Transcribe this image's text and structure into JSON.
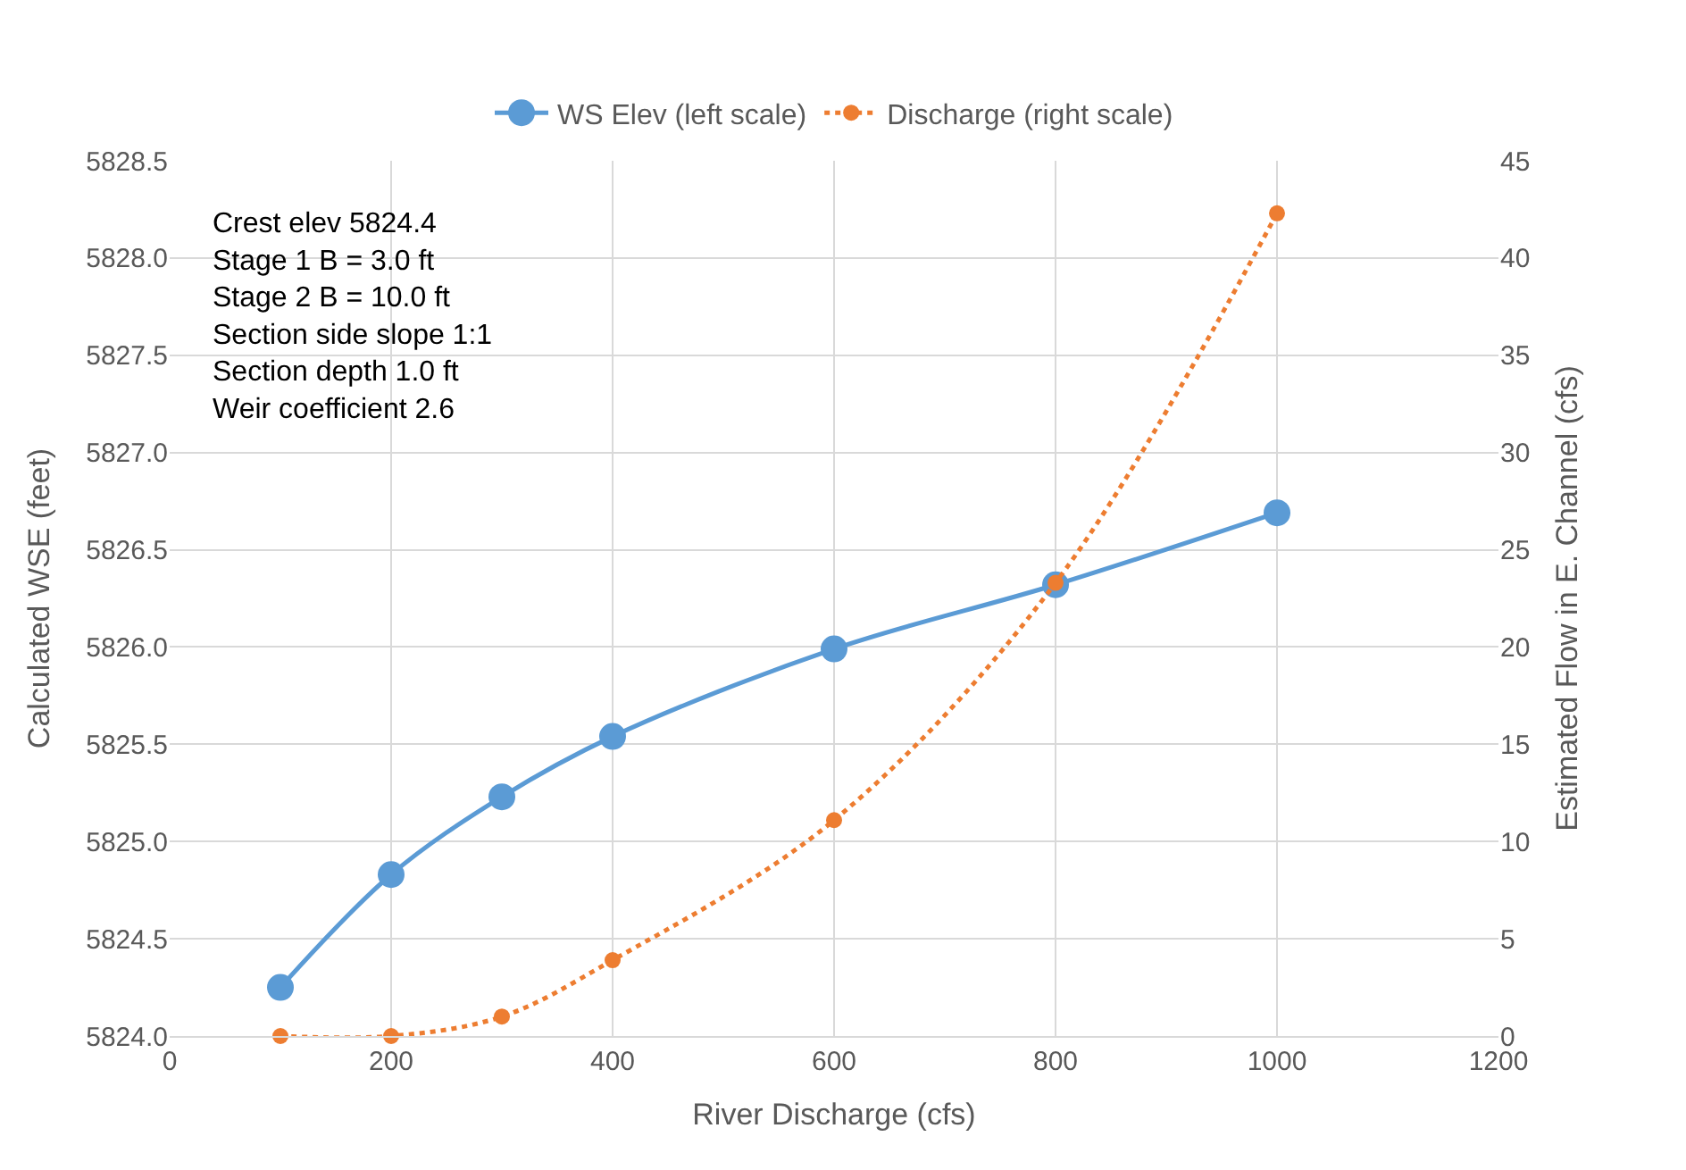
{
  "chart_data": {
    "type": "line",
    "xlabel": "River Discharge (cfs)",
    "ylabel": "Calculated WSE (feet)",
    "y2label": "Estimated Flow in E. Channel (cfs)",
    "x": [
      100,
      200,
      300,
      400,
      600,
      800,
      1000
    ],
    "series": [
      {
        "name": "WS Elev (left scale)",
        "color": "#5b9bd5",
        "values": [
          5824.25,
          5824.83,
          5825.23,
          5825.54,
          5825.99,
          5826.32,
          5826.69
        ],
        "line_style": "solid"
      },
      {
        "name": "Discharge (right scale)",
        "color": "#ed7d31",
        "values": [
          0,
          0,
          1.0,
          3.9,
          11.1,
          23.3,
          42.3
        ],
        "axis": "y2",
        "line_style": "dotted"
      }
    ],
    "xlim": [
      0,
      1200
    ],
    "xticks": [
      0,
      200,
      400,
      600,
      800,
      1000,
      1200
    ],
    "ylim": [
      5824.0,
      5828.5
    ],
    "yticks": [
      {
        "value": 5824.0,
        "label": "5824.0"
      },
      {
        "value": 5824.5,
        "label": "5824.5"
      },
      {
        "value": 5825.0,
        "label": "5825.0"
      },
      {
        "value": 5825.5,
        "label": "5825.5"
      },
      {
        "value": 5826.0,
        "label": "5826.0"
      },
      {
        "value": 5826.5,
        "label": "5826.5"
      },
      {
        "value": 5827.0,
        "label": "5827.0"
      },
      {
        "value": 5827.5,
        "label": "5827.5"
      },
      {
        "value": 5828.0,
        "label": "5828.0"
      },
      {
        "value": 5828.5,
        "label": "5828.5"
      }
    ],
    "y2lim": [
      0,
      45
    ],
    "y2ticks": [
      0,
      5,
      10,
      15,
      20,
      25,
      30,
      35,
      40,
      45
    ],
    "annotations": [
      "Crest elev 5824.4",
      "Stage 1 B = 3.0 ft",
      "Stage 2 B = 10.0 ft",
      "Section side slope 1:1",
      "Section depth 1.0 ft",
      "Weir coefficient 2.6"
    ],
    "grid": true,
    "legend": "top",
    "marker": "circle"
  }
}
